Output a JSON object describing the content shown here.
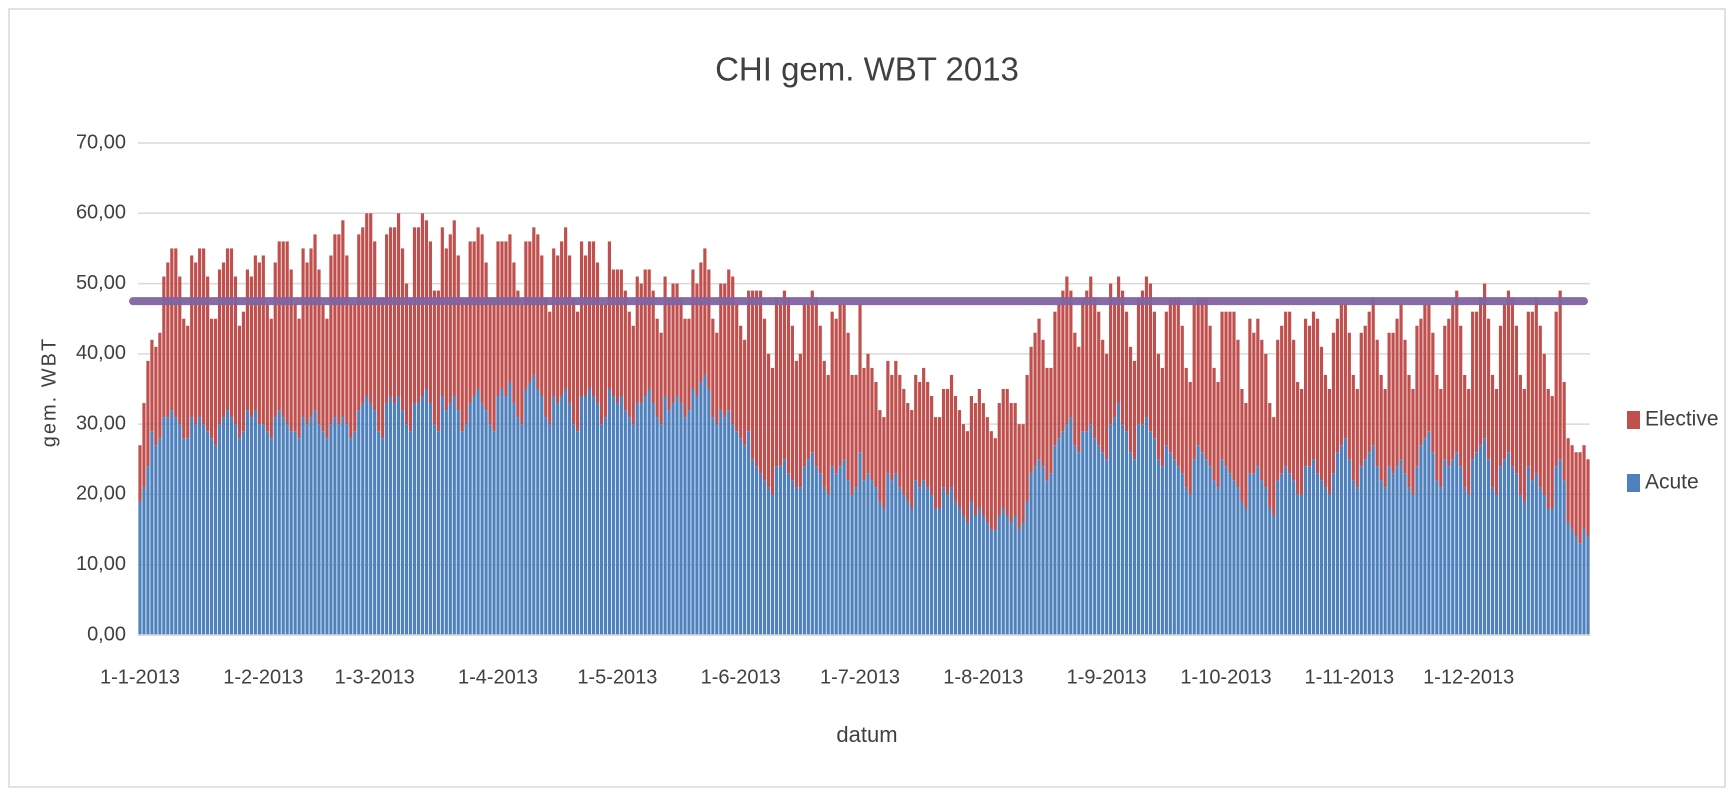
{
  "chart_data": {
    "type": "bar",
    "stacked": true,
    "title": "CHI gem. WBT 2013",
    "x_label": "datum",
    "y_label": "gem. WBT",
    "ylim": [
      0,
      70
    ],
    "yticks": [
      {
        "value": 0,
        "label": "0,00"
      },
      {
        "value": 10,
        "label": "10,00"
      },
      {
        "value": 20,
        "label": "20,00"
      },
      {
        "value": 30,
        "label": "30,00"
      },
      {
        "value": 40,
        "label": "40,00"
      },
      {
        "value": 50,
        "label": "50,00"
      },
      {
        "value": 60,
        "label": "60,00"
      },
      {
        "value": 70,
        "label": "70,00"
      }
    ],
    "grid": true,
    "legend": "right",
    "average": 47.5,
    "average_color": "#8064a2",
    "categories": [
      "1-1-2013",
      null,
      null,
      null,
      null,
      null,
      null,
      null,
      null,
      null,
      null,
      null,
      null,
      null,
      null,
      null,
      null,
      null,
      null,
      null,
      null,
      null,
      null,
      null,
      null,
      null,
      null,
      null,
      null,
      null,
      null,
      "1-2-2013",
      null,
      null,
      null,
      null,
      null,
      null,
      null,
      null,
      null,
      null,
      null,
      null,
      null,
      null,
      null,
      null,
      null,
      null,
      null,
      null,
      null,
      null,
      null,
      null,
      null,
      null,
      null,
      "1-3-2013",
      null,
      null,
      null,
      null,
      null,
      null,
      null,
      null,
      null,
      null,
      null,
      null,
      null,
      null,
      null,
      null,
      null,
      null,
      null,
      null,
      null,
      null,
      null,
      null,
      null,
      null,
      null,
      null,
      null,
      null,
      "1-4-2013",
      null,
      null,
      null,
      null,
      null,
      null,
      null,
      null,
      null,
      null,
      null,
      null,
      null,
      null,
      null,
      null,
      null,
      null,
      null,
      null,
      null,
      null,
      null,
      null,
      null,
      null,
      null,
      null,
      null,
      "1-5-2013",
      null,
      null,
      null,
      null,
      null,
      null,
      null,
      null,
      null,
      null,
      null,
      null,
      null,
      null,
      null,
      null,
      null,
      null,
      null,
      null,
      null,
      null,
      null,
      null,
      null,
      null,
      null,
      null,
      null,
      null,
      "1-6-2013",
      null,
      null,
      null,
      null,
      null,
      null,
      null,
      null,
      null,
      null,
      null,
      null,
      null,
      null,
      null,
      null,
      null,
      null,
      null,
      null,
      null,
      null,
      null,
      null,
      null,
      null,
      null,
      null,
      null,
      "1-7-2013",
      null,
      null,
      null,
      null,
      null,
      null,
      null,
      null,
      null,
      null,
      null,
      null,
      null,
      null,
      null,
      null,
      null,
      null,
      null,
      null,
      null,
      null,
      null,
      null,
      null,
      null,
      null,
      null,
      null,
      null,
      "1-8-2013",
      null,
      null,
      null,
      null,
      null,
      null,
      null,
      null,
      null,
      null,
      null,
      null,
      null,
      null,
      null,
      null,
      null,
      null,
      null,
      null,
      null,
      null,
      null,
      null,
      null,
      null,
      null,
      null,
      null,
      null,
      "1-9-2013",
      null,
      null,
      null,
      null,
      null,
      null,
      null,
      null,
      null,
      null,
      null,
      null,
      null,
      null,
      null,
      null,
      null,
      null,
      null,
      null,
      null,
      null,
      null,
      null,
      null,
      null,
      null,
      null,
      null,
      "1-10-2013",
      null,
      null,
      null,
      null,
      null,
      null,
      null,
      null,
      null,
      null,
      null,
      null,
      null,
      null,
      null,
      null,
      null,
      null,
      null,
      null,
      null,
      null,
      null,
      null,
      null,
      null,
      null,
      null,
      null,
      null,
      "1-11-2013",
      null,
      null,
      null,
      null,
      null,
      null,
      null,
      null,
      null,
      null,
      null,
      null,
      null,
      null,
      null,
      null,
      null,
      null,
      null,
      null,
      null,
      null,
      null,
      null,
      null,
      null,
      null,
      null,
      null,
      "1-12-2013",
      null,
      null,
      null,
      null,
      null,
      null,
      null,
      null,
      null,
      null,
      null,
      null,
      null,
      null,
      null,
      null,
      null,
      null,
      null,
      null,
      null,
      null,
      null,
      null,
      null,
      null,
      null,
      null,
      null,
      null
    ],
    "series": [
      {
        "name": "Acute",
        "color": "#4f81bd",
        "values": [
          19,
          21,
          24,
          29,
          27,
          28,
          31,
          31,
          32,
          31,
          30,
          28,
          28,
          31,
          30,
          31,
          30,
          29,
          28,
          27,
          30,
          31,
          32,
          31,
          30,
          28,
          29,
          32,
          31,
          32,
          30,
          30,
          29,
          28,
          31,
          32,
          31,
          30,
          29,
          29,
          28,
          31,
          30,
          31,
          32,
          30,
          29,
          28,
          30,
          31,
          30,
          31,
          30,
          28,
          29,
          32,
          33,
          34,
          33,
          32,
          29,
          28,
          33,
          34,
          33,
          34,
          32,
          30,
          29,
          33,
          33,
          34,
          35,
          33,
          30,
          29,
          34,
          32,
          33,
          34,
          32,
          29,
          30,
          33,
          34,
          35,
          33,
          32,
          30,
          29,
          34,
          35,
          34,
          36,
          33,
          31,
          30,
          35,
          36,
          37,
          35,
          34,
          31,
          30,
          34,
          33,
          34,
          35,
          33,
          30,
          29,
          34,
          34,
          35,
          34,
          33,
          30,
          31,
          35,
          34,
          33,
          34,
          32,
          31,
          30,
          33,
          33,
          34,
          35,
          33,
          31,
          30,
          34,
          32,
          33,
          34,
          33,
          31,
          32,
          35,
          34,
          36,
          37,
          35,
          31,
          30,
          32,
          31,
          32,
          30,
          29,
          28,
          27,
          29,
          25,
          24,
          23,
          22,
          21,
          20,
          24,
          24,
          25,
          23,
          22,
          21,
          21,
          24,
          25,
          26,
          24,
          23,
          21,
          20,
          24,
          23,
          24,
          25,
          22,
          20,
          21,
          26,
          22,
          23,
          22,
          21,
          19,
          18,
          23,
          22,
          23,
          21,
          20,
          19,
          18,
          22,
          21,
          22,
          21,
          20,
          18,
          18,
          21,
          20,
          21,
          19,
          18,
          17,
          16,
          19,
          17,
          18,
          17,
          16,
          15,
          15,
          17,
          18,
          17,
          16,
          17,
          15,
          16,
          19,
          23,
          24,
          25,
          24,
          22,
          23,
          27,
          28,
          29,
          30,
          31,
          27,
          26,
          29,
          29,
          30,
          28,
          27,
          26,
          25,
          30,
          31,
          33,
          30,
          29,
          26,
          25,
          30,
          30,
          31,
          29,
          28,
          25,
          24,
          27,
          26,
          25,
          24,
          23,
          21,
          20,
          25,
          27,
          26,
          25,
          24,
          22,
          21,
          25,
          24,
          23,
          22,
          21,
          19,
          18,
          23,
          23,
          24,
          22,
          21,
          18,
          17,
          22,
          23,
          24,
          23,
          22,
          20,
          20,
          24,
          24,
          25,
          23,
          22,
          21,
          20,
          23,
          26,
          27,
          28,
          25,
          22,
          21,
          24,
          25,
          26,
          27,
          24,
          22,
          21,
          24,
          23,
          24,
          25,
          23,
          21,
          20,
          24,
          27,
          28,
          29,
          26,
          22,
          21,
          25,
          24,
          25,
          26,
          24,
          21,
          20,
          25,
          26,
          27,
          28,
          25,
          21,
          20,
          24,
          25,
          26,
          24,
          23,
          20,
          19,
          24,
          22,
          23,
          21,
          20,
          18,
          18,
          24,
          25,
          22,
          16,
          15,
          14,
          13,
          15,
          14
        ]
      },
      {
        "name": "Elective",
        "color": "#c0504d",
        "values": [
          8,
          12,
          15,
          13,
          14,
          15,
          20,
          22,
          23,
          24,
          21,
          17,
          16,
          23,
          23,
          24,
          25,
          22,
          17,
          18,
          22,
          22,
          23,
          24,
          21,
          16,
          17,
          20,
          20,
          22,
          23,
          24,
          18,
          17,
          22,
          24,
          25,
          26,
          23,
          18,
          17,
          24,
          23,
          24,
          25,
          22,
          18,
          17,
          24,
          26,
          27,
          28,
          24,
          19,
          18,
          25,
          25,
          26,
          27,
          24,
          19,
          20,
          24,
          24,
          25,
          26,
          23,
          20,
          19,
          25,
          25,
          26,
          24,
          23,
          19,
          20,
          24,
          23,
          24,
          25,
          22,
          19,
          18,
          23,
          22,
          23,
          24,
          21,
          18,
          19,
          22,
          21,
          22,
          21,
          20,
          18,
          17,
          21,
          20,
          21,
          22,
          20,
          17,
          16,
          21,
          21,
          22,
          23,
          21,
          18,
          17,
          22,
          20,
          21,
          22,
          20,
          17,
          16,
          21,
          18,
          19,
          18,
          17,
          15,
          14,
          18,
          17,
          18,
          17,
          16,
          14,
          13,
          17,
          16,
          17,
          16,
          15,
          14,
          13,
          17,
          16,
          17,
          18,
          17,
          14,
          13,
          18,
          19,
          20,
          21,
          18,
          16,
          15,
          20,
          24,
          25,
          26,
          23,
          19,
          18,
          24,
          23,
          24,
          25,
          22,
          18,
          19,
          23,
          22,
          23,
          24,
          21,
          18,
          17,
          22,
          22,
          23,
          22,
          21,
          17,
          16,
          21,
          16,
          17,
          16,
          15,
          13,
          13,
          16,
          15,
          16,
          16,
          15,
          14,
          14,
          15,
          15,
          16,
          15,
          14,
          13,
          13,
          14,
          15,
          16,
          15,
          14,
          13,
          13,
          15,
          16,
          17,
          16,
          15,
          14,
          13,
          16,
          17,
          18,
          17,
          16,
          15,
          14,
          18,
          18,
          19,
          20,
          18,
          16,
          15,
          19,
          19,
          20,
          21,
          18,
          16,
          15,
          19,
          20,
          21,
          20,
          19,
          16,
          15,
          20,
          17,
          18,
          19,
          17,
          15,
          14,
          18,
          19,
          20,
          21,
          18,
          15,
          14,
          19,
          22,
          23,
          24,
          21,
          17,
          16,
          22,
          21,
          22,
          23,
          20,
          16,
          15,
          21,
          22,
          23,
          24,
          21,
          16,
          15,
          22,
          20,
          21,
          20,
          19,
          15,
          14,
          20,
          21,
          22,
          23,
          20,
          16,
          15,
          21,
          20,
          21,
          22,
          19,
          16,
          15,
          20,
          19,
          20,
          19,
          18,
          15,
          14,
          19,
          19,
          20,
          21,
          18,
          15,
          14,
          19,
          20,
          21,
          22,
          19,
          16,
          15,
          20,
          18,
          19,
          18,
          17,
          15,
          14,
          19,
          21,
          22,
          23,
          20,
          16,
          15,
          21,
          20,
          21,
          22,
          20,
          16,
          15,
          20,
          22,
          23,
          24,
          21,
          17,
          16,
          22,
          24,
          25,
          23,
          20,
          17,
          16,
          22,
          24,
          14,
          12,
          12,
          12,
          13,
          12,
          11
        ]
      }
    ]
  }
}
